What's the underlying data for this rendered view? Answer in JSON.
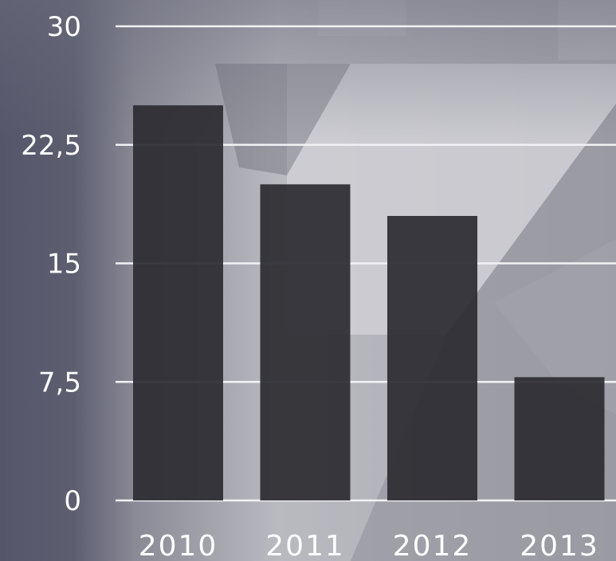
{
  "chart_data": {
    "type": "bar",
    "categories": [
      "2010",
      "2011",
      "2012",
      "2013"
    ],
    "values": [
      25,
      20,
      18,
      7.8
    ],
    "y_ticks": [
      "0",
      "7,5",
      "15",
      "22,5",
      "30"
    ],
    "y_tick_values": [
      0,
      7.5,
      15,
      22.5,
      30
    ],
    "ylim": [
      0,
      30
    ],
    "grid": true,
    "colors": {
      "bar": "#2b2b31",
      "gridline": "#f2f2f5",
      "axis_panel": "#575869",
      "background_light": "#c9c9cf",
      "background_mid": "#9b9ba3",
      "label": "#ffffff"
    }
  }
}
